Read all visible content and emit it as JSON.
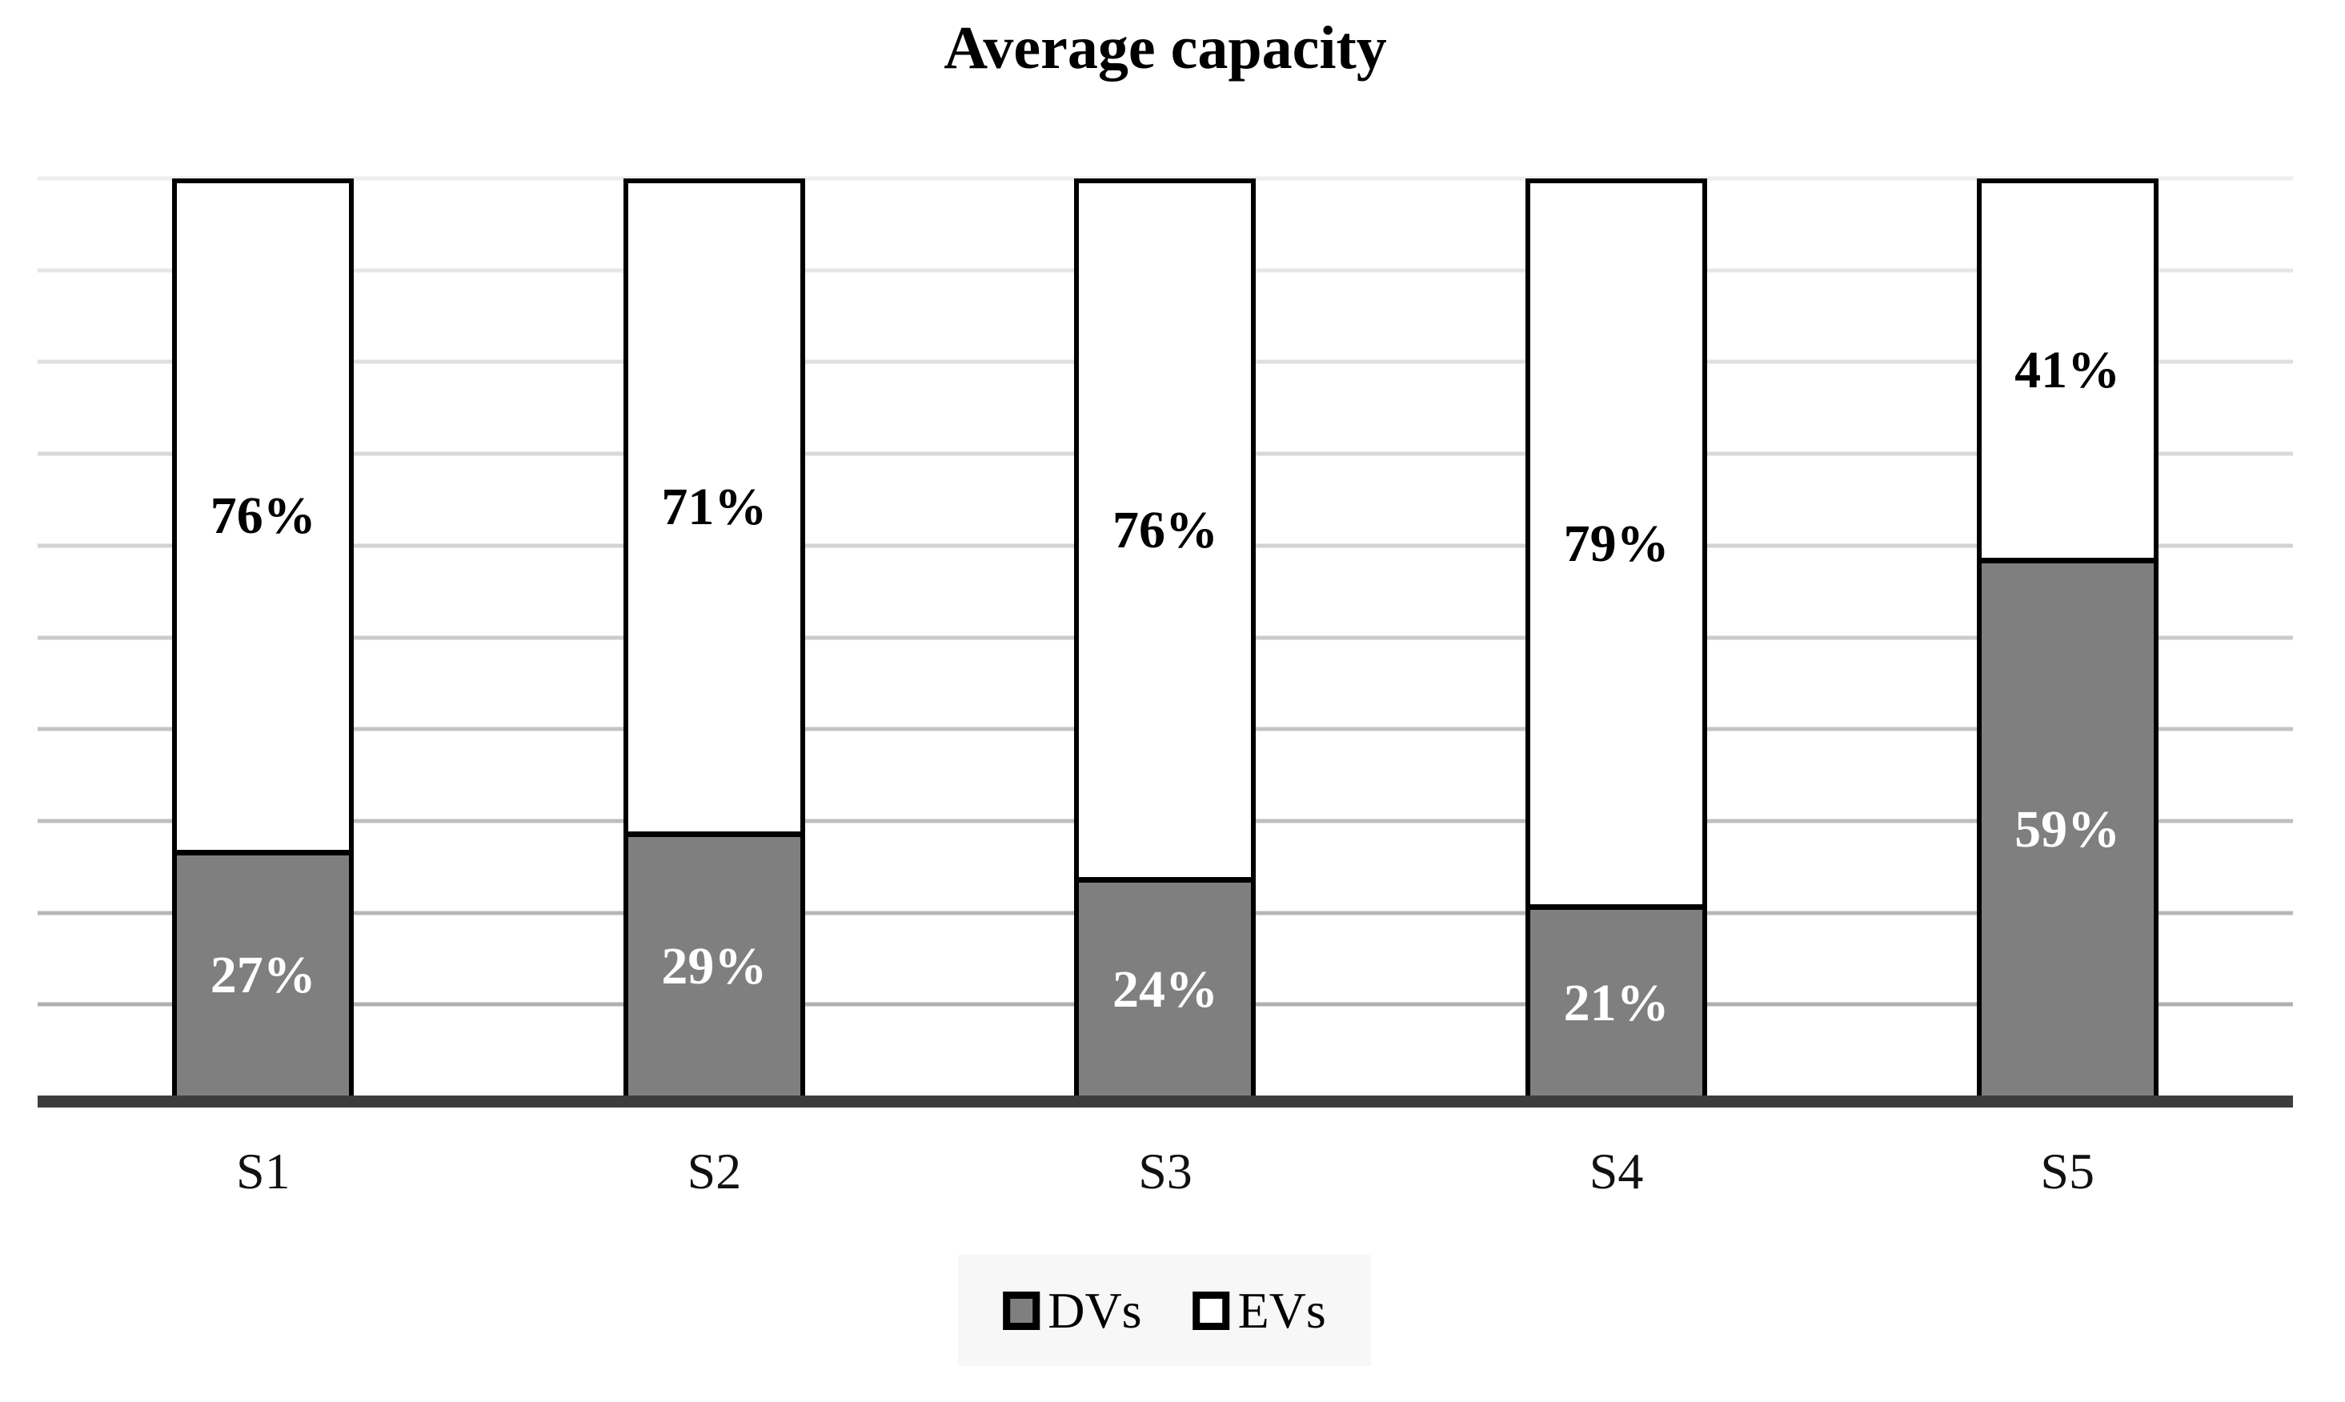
{
  "title": "Average capacity",
  "colors": {
    "dv_fill": "#7f7f7f",
    "ev_fill": "#ffffff",
    "bar_border": "#000000",
    "label_on_dv": "#ffffff",
    "label_on_ev": "#000000",
    "axis_line": "#3d3d3d",
    "grid_top": "#ededed",
    "grid_bottom": "#b0b0b0",
    "legend_bg": "#f7f7f7"
  },
  "legend": {
    "items": [
      {
        "label": "DVs",
        "fill": "#7f7f7f"
      },
      {
        "label": "EVs",
        "fill": "#ffffff"
      }
    ]
  },
  "chart_data": {
    "type": "bar",
    "stacked": true,
    "title": "Average capacity",
    "categories": [
      "S1",
      "S2",
      "S3",
      "S4",
      "S5"
    ],
    "series": [
      {
        "name": "DVs",
        "values": [
          27,
          29,
          24,
          21,
          59
        ],
        "labels": [
          "27%",
          "29%",
          "24%",
          "21%",
          "59%"
        ]
      },
      {
        "name": "EVs",
        "values": [
          76,
          71,
          76,
          79,
          41
        ],
        "labels": [
          "76%",
          "71%",
          "76%",
          "79%",
          "41%"
        ]
      }
    ],
    "xlabel": "",
    "ylabel": "",
    "ylim": [
      0,
      100
    ],
    "grid": true,
    "gridline_count": 10,
    "legend_position": "bottom"
  }
}
